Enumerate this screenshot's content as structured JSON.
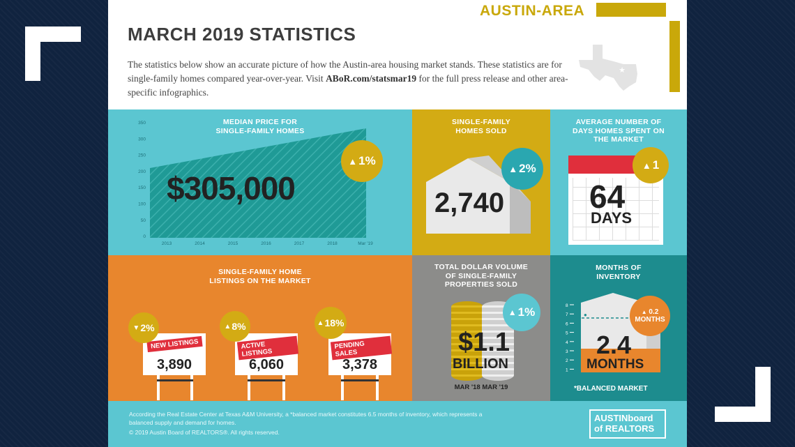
{
  "header": {
    "region": "AUSTIN-AREA",
    "title": "MARCH 2019 STATISTICS",
    "intro_before": "The statistics below show an accurate picture of how the Austin-area housing market stands. These statistics are for single-family homes compared year-over-year. Visit ",
    "intro_link": "ABoR.com/statsmar19",
    "intro_after": " for the full press release and other area-specific infographics."
  },
  "median_price": {
    "title_line1": "MEDIAN PRICE FOR",
    "title_line2": "SINGLE-FAMILY HOMES",
    "value": "$305,000",
    "change": "1%",
    "y_ticks": [
      "350",
      "300",
      "250",
      "200",
      "150",
      "100",
      "50",
      "0"
    ],
    "x_ticks": [
      "2013",
      "2014",
      "2015",
      "2016",
      "2017",
      "2018",
      "Mar '19"
    ]
  },
  "homes_sold": {
    "title_line1": "SINGLE-FAMILY",
    "title_line2": "HOMES SOLD",
    "value": "2,740",
    "change": "2%"
  },
  "days_on_market": {
    "title_line1": "AVERAGE NUMBER OF",
    "title_line2": "DAYS HOMES SPENT ON",
    "title_line3": "THE MARKET",
    "value": "64",
    "unit": "DAYS",
    "change": "1"
  },
  "listings": {
    "title_line1": "SINGLE-FAMILY HOME",
    "title_line2": "LISTINGS ON THE MARKET",
    "items": [
      {
        "label": "NEW LISTINGS",
        "value": "3,890",
        "change": "2%",
        "direction": "down"
      },
      {
        "label": "ACTIVE LISTINGS",
        "value": "6,060",
        "change": "8%",
        "direction": "up"
      },
      {
        "label": "PENDING SALES",
        "value": "3,378",
        "change": "18%",
        "direction": "up"
      }
    ]
  },
  "dollar_volume": {
    "title_line1": "TOTAL DOLLAR VOLUME",
    "title_line2": "OF SINGLE-FAMILY",
    "title_line3": "PROPERTIES SOLD",
    "value": "$1.1",
    "unit": "BILLION",
    "change": "1%",
    "caption": "MAR '18 MAR '19"
  },
  "inventory": {
    "title_line1": "MONTHS OF",
    "title_line2": "INVENTORY",
    "value": "2.4",
    "unit": "MONTHS",
    "change_value": "0.2",
    "change_unit": "MONTHS",
    "y_ticks": [
      "8",
      "7",
      "6",
      "5",
      "4",
      "3",
      "2",
      "1"
    ],
    "note": "*BALANCED MARKET"
  },
  "footer": {
    "note": "According the Real Estate Center at Texas A&M University, a *balanced market constitutes 6.5 months of inventory, which represents a balanced supply and demand for homes.",
    "copyright": "© 2019  Austin Board of REALTORS®. All rights reserved.",
    "logo_line1": "AUSTINboard",
    "logo_line2": "of REALTORS"
  },
  "colors": {
    "teal": "#5bc6d1",
    "gold": "#d3ab14",
    "orange": "#e8862d",
    "gray": "#8c8c8a",
    "dark_teal": "#1d8c8e",
    "red": "#e02f3c"
  }
}
